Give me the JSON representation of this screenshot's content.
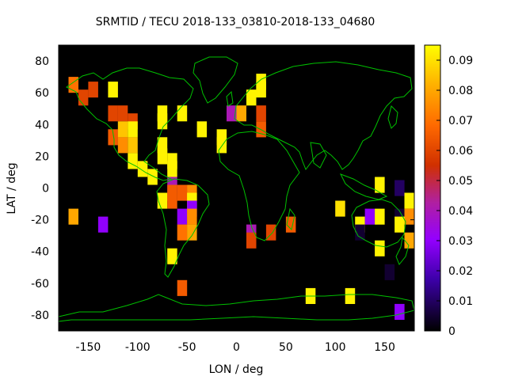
{
  "chart_data": {
    "type": "heatmap",
    "title": "SRMTID / TECU 2018-133_03810-2018-133_04680",
    "xlabel": "LON / deg",
    "ylabel": "LAT / deg",
    "xlim": [
      -180,
      180
    ],
    "ylim": [
      -90,
      90
    ],
    "x_ticks": [
      -150,
      -100,
      -50,
      0,
      50,
      100,
      150
    ],
    "y_ticks": [
      -80,
      -60,
      -40,
      -20,
      0,
      20,
      40,
      60,
      80
    ],
    "colorbar": {
      "range": [
        0,
        0.095
      ],
      "ticks": [
        "0",
        "0.01",
        "0.02",
        "0.03",
        "0.04",
        "0.05",
        "0.06",
        "0.07",
        "0.08",
        "0.09"
      ],
      "tick_values": [
        0,
        0.01,
        0.02,
        0.03,
        0.04,
        0.05,
        0.06,
        0.07,
        0.08,
        0.09
      ],
      "palette": "black-purple-red-orange-yellow"
    },
    "background_color": "#000000",
    "coastline_color": "#00c000",
    "cell_size_deg": [
      10,
      10
    ],
    "cells": [
      {
        "lon": -165,
        "lat": 65,
        "value": 0.07
      },
      {
        "lon": -155,
        "lat": 57,
        "value": 0.06
      },
      {
        "lon": -145,
        "lat": 62,
        "value": 0.06
      },
      {
        "lon": -125,
        "lat": 62,
        "value": 0.093
      },
      {
        "lon": -125,
        "lat": 47,
        "value": 0.06
      },
      {
        "lon": -115,
        "lat": 47,
        "value": 0.06
      },
      {
        "lon": -125,
        "lat": 32,
        "value": 0.065
      },
      {
        "lon": -105,
        "lat": 42,
        "value": 0.06
      },
      {
        "lon": -115,
        "lat": 37,
        "value": 0.085
      },
      {
        "lon": -105,
        "lat": 37,
        "value": 0.093
      },
      {
        "lon": -115,
        "lat": 27,
        "value": 0.075
      },
      {
        "lon": -105,
        "lat": 27,
        "value": 0.085
      },
      {
        "lon": -75,
        "lat": 47,
        "value": 0.093
      },
      {
        "lon": -75,
        "lat": 42,
        "value": 0.093
      },
      {
        "lon": -55,
        "lat": 47,
        "value": 0.093
      },
      {
        "lon": -75,
        "lat": 27,
        "value": 0.093
      },
      {
        "lon": -75,
        "lat": 20,
        "value": 0.093
      },
      {
        "lon": -105,
        "lat": 17,
        "value": 0.093
      },
      {
        "lon": -95,
        "lat": 12,
        "value": 0.093
      },
      {
        "lon": -65,
        "lat": 17,
        "value": 0.093
      },
      {
        "lon": -65,
        "lat": 12,
        "value": 0.093
      },
      {
        "lon": -85,
        "lat": 7,
        "value": 0.093
      },
      {
        "lon": -35,
        "lat": 37,
        "value": 0.093
      },
      {
        "lon": -15,
        "lat": 32,
        "value": 0.093
      },
      {
        "lon": -15,
        "lat": 27,
        "value": 0.093
      },
      {
        "lon": -5,
        "lat": 47,
        "value": 0.04
      },
      {
        "lon": 5,
        "lat": 47,
        "value": 0.08
      },
      {
        "lon": 25,
        "lat": 67,
        "value": 0.093
      },
      {
        "lon": 25,
        "lat": 62,
        "value": 0.093
      },
      {
        "lon": 15,
        "lat": 57,
        "value": 0.093
      },
      {
        "lon": 25,
        "lat": 47,
        "value": 0.06
      },
      {
        "lon": 25,
        "lat": 37,
        "value": 0.065
      },
      {
        "lon": -65,
        "lat": 2,
        "value": 0.04
      },
      {
        "lon": -65,
        "lat": -3,
        "value": 0.065
      },
      {
        "lon": -55,
        "lat": -3,
        "value": 0.065
      },
      {
        "lon": -45,
        "lat": -3,
        "value": 0.075
      },
      {
        "lon": -75,
        "lat": -8,
        "value": 0.093
      },
      {
        "lon": -65,
        "lat": -8,
        "value": 0.065
      },
      {
        "lon": -45,
        "lat": -8,
        "value": 0.093
      },
      {
        "lon": -45,
        "lat": -13,
        "value": 0.03
      },
      {
        "lon": -55,
        "lat": -18,
        "value": 0.03
      },
      {
        "lon": -45,
        "lat": -18,
        "value": 0.075
      },
      {
        "lon": -55,
        "lat": -28,
        "value": 0.07
      },
      {
        "lon": -45,
        "lat": -28,
        "value": 0.08
      },
      {
        "lon": -165,
        "lat": -18,
        "value": 0.08
      },
      {
        "lon": -135,
        "lat": -23,
        "value": 0.03
      },
      {
        "lon": -65,
        "lat": -43,
        "value": 0.093
      },
      {
        "lon": -55,
        "lat": -63,
        "value": 0.065
      },
      {
        "lon": 15,
        "lat": -28,
        "value": 0.04
      },
      {
        "lon": 15,
        "lat": -33,
        "value": 0.06
      },
      {
        "lon": 35,
        "lat": -28,
        "value": 0.06
      },
      {
        "lon": 55,
        "lat": -23,
        "value": 0.065
      },
      {
        "lon": 145,
        "lat": 2,
        "value": 0.093
      },
      {
        "lon": 105,
        "lat": -13,
        "value": 0.09
      },
      {
        "lon": 125,
        "lat": -23,
        "value": 0.093
      },
      {
        "lon": 135,
        "lat": -18,
        "value": 0.03
      },
      {
        "lon": 145,
        "lat": -18,
        "value": 0.093
      },
      {
        "lon": 165,
        "lat": 0,
        "value": 0.01
      },
      {
        "lon": 175,
        "lat": -8,
        "value": 0.093
      },
      {
        "lon": 165,
        "lat": -18,
        "value": 0.005
      },
      {
        "lon": 175,
        "lat": -18,
        "value": 0.075
      },
      {
        "lon": 125,
        "lat": -28,
        "value": 0.005
      },
      {
        "lon": 165,
        "lat": -23,
        "value": 0.093
      },
      {
        "lon": 175,
        "lat": -33,
        "value": 0.08
      },
      {
        "lon": 145,
        "lat": -38,
        "value": 0.093
      },
      {
        "lon": 155,
        "lat": -53,
        "value": 0.005
      },
      {
        "lon": 75,
        "lat": -68,
        "value": 0.093
      },
      {
        "lon": 115,
        "lat": -68,
        "value": 0.093
      },
      {
        "lon": 165,
        "lat": -78,
        "value": 0.03
      }
    ]
  }
}
